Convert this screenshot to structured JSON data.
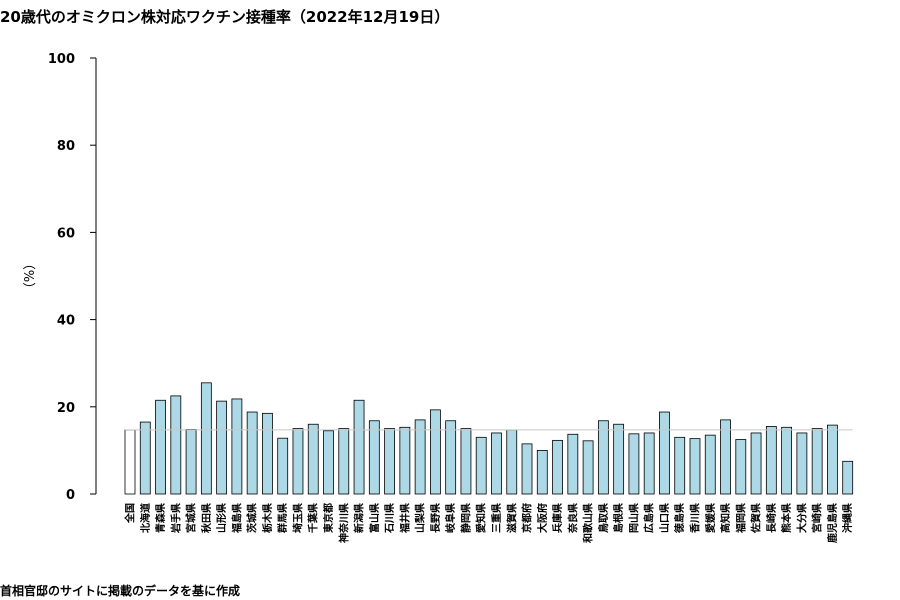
{
  "title": "20歳代のオミクロン株対応ワクチン接種率（2022年12月19日）",
  "footer": "首相官邸のサイトに掲載のデータを基に作成",
  "colors": {
    "bar": "#add8e6",
    "national_bar": "#ffffff",
    "reference_line": "#c8c8c8",
    "axis": "#000000"
  },
  "chart_data": {
    "type": "bar",
    "title": "20歳代のオミクロン株対応ワクチン接種率（2022年12月19日）",
    "xlabel": "",
    "ylabel": "（%）",
    "ylim": [
      0,
      100
    ],
    "yticks": [
      0,
      20,
      40,
      60,
      80,
      100
    ],
    "grid": false,
    "legend": "none",
    "reference_line": 14.7,
    "categories": [
      "全国",
      "北海道",
      "青森県",
      "岩手県",
      "宮城県",
      "秋田県",
      "山形県",
      "福島県",
      "茨城県",
      "栃木県",
      "群馬県",
      "埼玉県",
      "千葉県",
      "東京都",
      "神奈川県",
      "新潟県",
      "富山県",
      "石川県",
      "福井県",
      "山梨県",
      "長野県",
      "岐阜県",
      "静岡県",
      "愛知県",
      "三重県",
      "滋賀県",
      "京都府",
      "大阪府",
      "兵庫県",
      "奈良県",
      "和歌山県",
      "鳥取県",
      "島根県",
      "岡山県",
      "広島県",
      "山口県",
      "徳島県",
      "香川県",
      "愛媛県",
      "高知県",
      "福岡県",
      "佐賀県",
      "長崎県",
      "熊本県",
      "大分県",
      "宮崎県",
      "鹿児島県",
      "沖縄県"
    ],
    "values": [
      14.7,
      16.5,
      21.5,
      22.5,
      14.8,
      25.5,
      21.3,
      21.8,
      18.8,
      18.5,
      12.8,
      15.0,
      16.0,
      14.5,
      15.0,
      21.5,
      16.8,
      15.0,
      15.3,
      17.0,
      19.3,
      16.8,
      15.0,
      13.0,
      14.0,
      14.7,
      11.5,
      10.0,
      12.3,
      13.7,
      12.2,
      16.8,
      16.0,
      13.8,
      14.0,
      18.8,
      13.0,
      12.7,
      13.5,
      17.0,
      12.5,
      14.0,
      15.5,
      15.3,
      14.0,
      15.0,
      15.8,
      7.5
    ]
  }
}
